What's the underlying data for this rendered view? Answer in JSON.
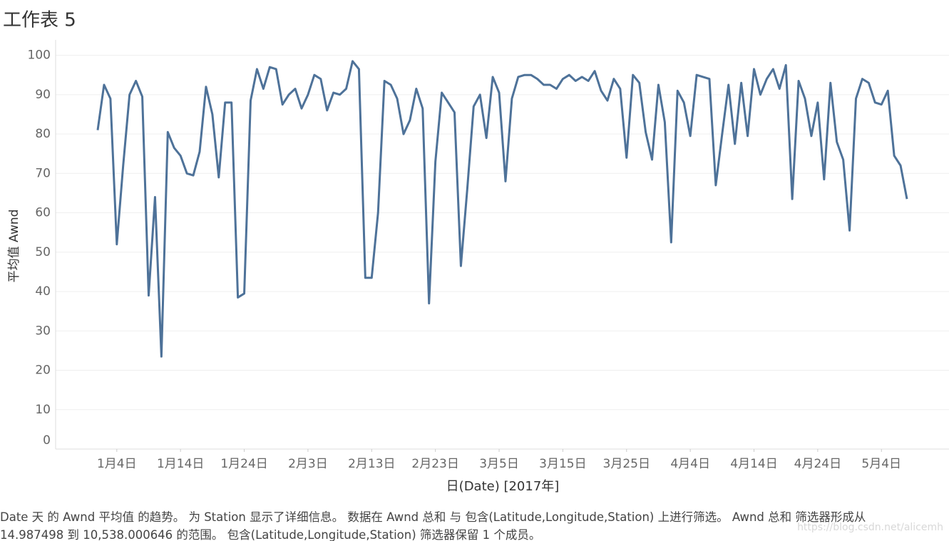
{
  "chart_data": {
    "type": "line",
    "title": "工作表 5",
    "y_label": "平均值 Awnd",
    "x_label": "日(Date) [2017年]",
    "caption": [
      "Date 天 的 Awnd 平均值 的趋势。 为 Station 显示了详细信息。 数据在 Awnd 总和 与 包含(Latitude,Longitude,Station) 上进行筛选。 Awnd 总和 筛选器形成从",
      "14.987498 到 10,538.000646 的范围。 包含(Latitude,Longitude,Station) 筛选器保留 1 个成员。"
    ],
    "watermark": "https://blog.csdn.net/alicemh",
    "ylim": [
      0,
      103
    ],
    "yticks": [
      0,
      10,
      20,
      30,
      40,
      50,
      60,
      70,
      80,
      90,
      100
    ],
    "grid": true,
    "xticks": [
      {
        "value": "2017-01-04",
        "label": "1月4日"
      },
      {
        "value": "2017-01-14",
        "label": "1月14日"
      },
      {
        "value": "2017-01-24",
        "label": "1月24日"
      },
      {
        "value": "2017-02-03",
        "label": "2月3日"
      },
      {
        "value": "2017-02-13",
        "label": "2月13日"
      },
      {
        "value": "2017-02-23",
        "label": "2月23日"
      },
      {
        "value": "2017-03-05",
        "label": "3月5日"
      },
      {
        "value": "2017-03-15",
        "label": "3月15日"
      },
      {
        "value": "2017-03-25",
        "label": "3月25日"
      },
      {
        "value": "2017-04-04",
        "label": "4月4日"
      },
      {
        "value": "2017-04-14",
        "label": "4月14日"
      },
      {
        "value": "2017-04-24",
        "label": "4月24日"
      },
      {
        "value": "2017-05-04",
        "label": "5月4日"
      }
    ],
    "x": [
      "2017-01-01",
      "2017-01-02",
      "2017-01-03",
      "2017-01-04",
      "2017-01-05",
      "2017-01-06",
      "2017-01-07",
      "2017-01-08",
      "2017-01-09",
      "2017-01-10",
      "2017-01-11",
      "2017-01-12",
      "2017-01-13",
      "2017-01-14",
      "2017-01-15",
      "2017-01-16",
      "2017-01-17",
      "2017-01-18",
      "2017-01-19",
      "2017-01-20",
      "2017-01-21",
      "2017-01-22",
      "2017-01-23",
      "2017-01-24",
      "2017-01-25",
      "2017-01-26",
      "2017-01-27",
      "2017-01-28",
      "2017-01-29",
      "2017-01-30",
      "2017-01-31",
      "2017-02-01",
      "2017-02-02",
      "2017-02-03",
      "2017-02-04",
      "2017-02-05",
      "2017-02-06",
      "2017-02-07",
      "2017-02-08",
      "2017-02-09",
      "2017-02-10",
      "2017-02-11",
      "2017-02-12",
      "2017-02-13",
      "2017-02-14",
      "2017-02-15",
      "2017-02-16",
      "2017-02-17",
      "2017-02-18",
      "2017-02-19",
      "2017-02-20",
      "2017-02-21",
      "2017-02-22",
      "2017-02-23",
      "2017-02-24",
      "2017-02-25",
      "2017-02-26",
      "2017-02-27",
      "2017-02-28",
      "2017-03-01",
      "2017-03-02",
      "2017-03-03",
      "2017-03-04",
      "2017-03-05",
      "2017-03-06",
      "2017-03-07",
      "2017-03-08",
      "2017-03-09",
      "2017-03-10",
      "2017-03-11",
      "2017-03-12",
      "2017-03-13",
      "2017-03-14",
      "2017-03-15",
      "2017-03-16",
      "2017-03-17",
      "2017-03-18",
      "2017-03-19",
      "2017-03-20",
      "2017-03-21",
      "2017-03-22",
      "2017-03-23",
      "2017-03-24",
      "2017-03-25",
      "2017-03-26",
      "2017-03-27",
      "2017-03-28",
      "2017-03-29",
      "2017-03-30",
      "2017-03-31",
      "2017-04-01",
      "2017-04-02",
      "2017-04-03",
      "2017-04-04",
      "2017-04-05",
      "2017-04-06",
      "2017-04-07",
      "2017-04-08",
      "2017-04-09",
      "2017-04-10",
      "2017-04-11",
      "2017-04-12",
      "2017-04-13",
      "2017-04-14",
      "2017-04-15",
      "2017-04-16",
      "2017-04-17",
      "2017-04-18",
      "2017-04-19",
      "2017-04-20",
      "2017-04-21",
      "2017-04-22",
      "2017-04-23",
      "2017-04-24",
      "2017-04-25",
      "2017-04-26",
      "2017-04-27",
      "2017-04-28",
      "2017-04-29",
      "2017-04-30",
      "2017-05-01",
      "2017-05-02",
      "2017-05-03",
      "2017-05-04",
      "2017-05-05",
      "2017-05-06",
      "2017-05-07",
      "2017-05-08"
    ],
    "series": [
      {
        "name": "平均值 Awnd",
        "color": "#4e7299",
        "values": [
          81,
          92.5,
          89,
          52,
          72,
          90,
          93.5,
          89.5,
          39,
          64,
          23.5,
          80.5,
          76.5,
          74.5,
          70,
          69.5,
          75.5,
          92,
          85,
          69,
          88,
          88,
          38.5,
          39.5,
          88.5,
          96.5,
          91.5,
          97,
          96.5,
          87.5,
          90,
          91.5,
          86.5,
          90,
          95,
          94,
          86,
          90.5,
          90,
          91.5,
          98.5,
          96.5,
          43.5,
          43.5,
          60,
          93.5,
          92.5,
          89,
          80,
          83.5,
          91.5,
          86.5,
          37,
          73,
          90.5,
          88,
          85.5,
          46.5,
          66,
          87,
          90,
          79,
          94.5,
          90.5,
          68,
          89,
          94.5,
          95,
          95,
          94,
          92.5,
          92.5,
          91.5,
          94,
          95,
          93.5,
          94.5,
          93.5,
          96,
          91,
          88.5,
          94,
          91.5,
          74,
          95,
          93,
          80.5,
          73.5,
          92.5,
          83,
          52.5,
          91,
          88,
          79.5,
          95,
          94.5,
          94,
          67,
          80,
          92.5,
          77.5,
          93,
          79.5,
          96.5,
          90,
          94,
          96.5,
          91.5,
          97.5,
          63.5,
          93.5,
          89,
          79.5,
          88,
          68.5,
          93,
          78,
          73.5,
          55.5,
          89,
          94,
          93,
          88,
          87.5,
          91,
          74.5,
          72,
          63.5
        ]
      }
    ]
  }
}
